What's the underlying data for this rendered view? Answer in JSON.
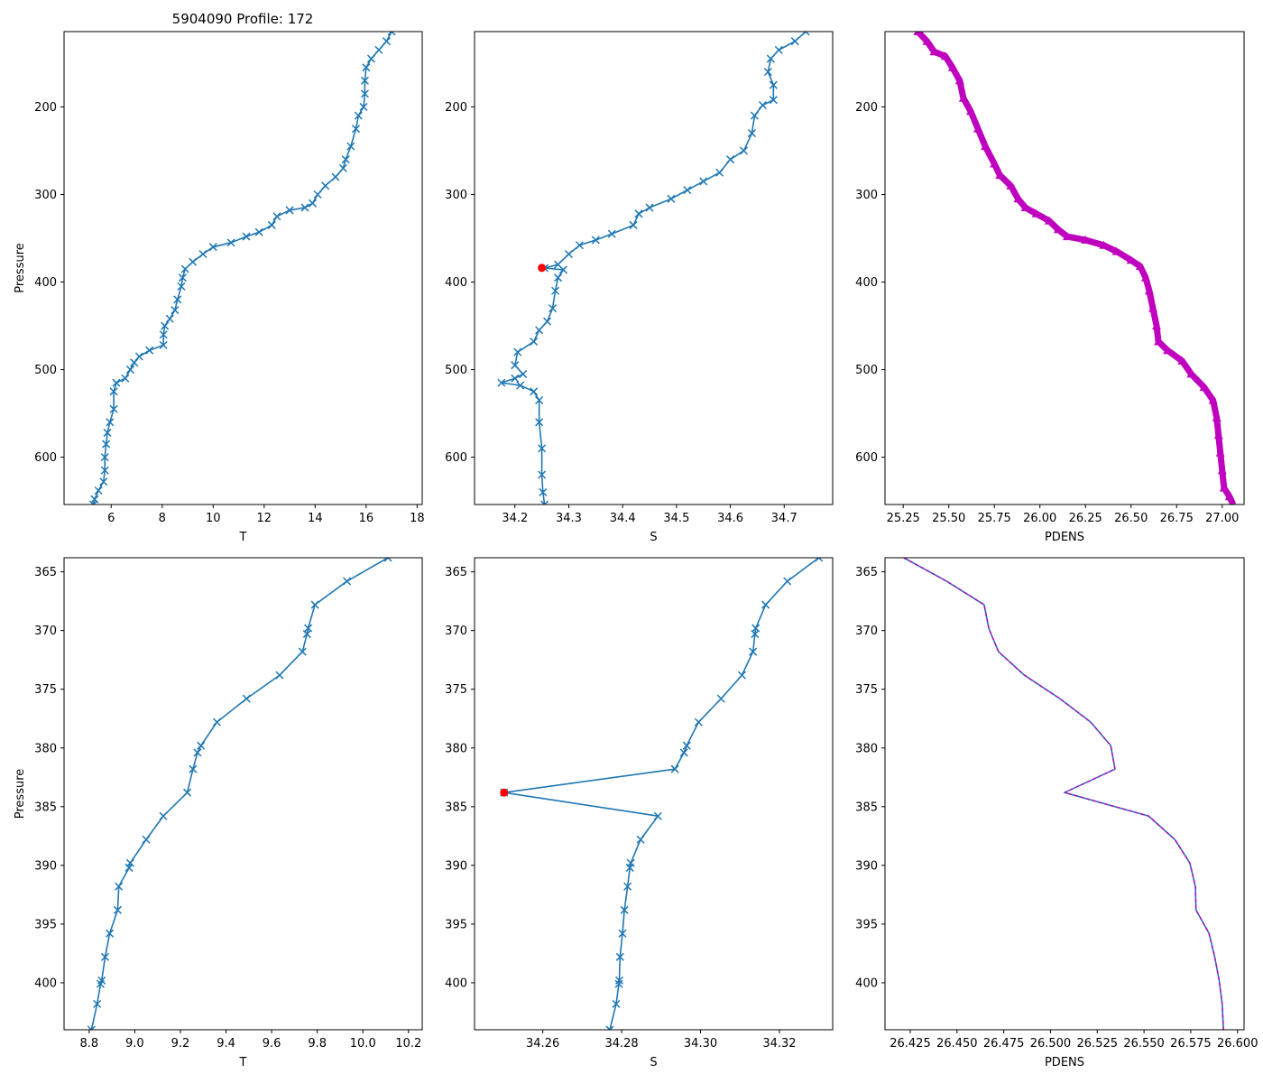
{
  "title": "5904090 Profile: 172",
  "colors": {
    "line": "#1f77b4",
    "density": "#bf00bf",
    "qc_flag": "#ff0000",
    "axis": "#000000"
  },
  "chart_data": [
    {
      "id": "top-temperature",
      "type": "line",
      "xlabel": "T",
      "ylabel": "Pressure",
      "xlim": [
        4.15,
        18.2
      ],
      "ylim": [
        654,
        114
      ],
      "y_inverted": true,
      "xticks": [
        6,
        8,
        10,
        12,
        14,
        16,
        18
      ],
      "yticks": [
        200,
        300,
        400,
        500,
        600
      ],
      "marker": "x",
      "color": "#1f77b4",
      "series": [
        {
          "name": "T",
          "points": [
            [
              17.0,
              114
            ],
            [
              16.8,
              125
            ],
            [
              16.5,
              135
            ],
            [
              16.2,
              145
            ],
            [
              16.0,
              155
            ],
            [
              15.95,
              170
            ],
            [
              15.95,
              185
            ],
            [
              15.9,
              200
            ],
            [
              15.7,
              210
            ],
            [
              15.6,
              225
            ],
            [
              15.4,
              245
            ],
            [
              15.2,
              260
            ],
            [
              15.1,
              270
            ],
            [
              14.8,
              280
            ],
            [
              14.4,
              290
            ],
            [
              14.1,
              300
            ],
            [
              13.9,
              310
            ],
            [
              13.6,
              315
            ],
            [
              13.0,
              318
            ],
            [
              12.5,
              325
            ],
            [
              12.3,
              335
            ],
            [
              11.8,
              343
            ],
            [
              11.3,
              348
            ],
            [
              10.7,
              355
            ],
            [
              10.0,
              360
            ],
            [
              9.6,
              368
            ],
            [
              9.2,
              377
            ],
            [
              8.9,
              385
            ],
            [
              8.8,
              395
            ],
            [
              8.75,
              405
            ],
            [
              8.6,
              420
            ],
            [
              8.5,
              432
            ],
            [
              8.3,
              442
            ],
            [
              8.1,
              450
            ],
            [
              8.05,
              460
            ],
            [
              8.05,
              472
            ],
            [
              7.5,
              478
            ],
            [
              7.1,
              485
            ],
            [
              6.9,
              492
            ],
            [
              6.75,
              500
            ],
            [
              6.55,
              510
            ],
            [
              6.2,
              515
            ],
            [
              6.1,
              525
            ],
            [
              6.1,
              545
            ],
            [
              5.95,
              560
            ],
            [
              5.85,
              572
            ],
            [
              5.8,
              585
            ],
            [
              5.75,
              600
            ],
            [
              5.75,
              615
            ],
            [
              5.7,
              628
            ],
            [
              5.5,
              638
            ],
            [
              5.35,
              648
            ],
            [
              5.3,
              654
            ]
          ]
        }
      ]
    },
    {
      "id": "top-salinity",
      "type": "line",
      "xlabel": "S",
      "ylabel": "",
      "xlim": [
        34.125,
        34.79
      ],
      "ylim": [
        654,
        114
      ],
      "y_inverted": true,
      "xticks": [
        34.2,
        34.3,
        34.4,
        34.5,
        34.6,
        34.7
      ],
      "yticks": [
        200,
        300,
        400,
        500,
        600
      ],
      "marker": "x",
      "color": "#1f77b4",
      "series": [
        {
          "name": "S",
          "points": [
            [
              34.74,
              114
            ],
            [
              34.72,
              125
            ],
            [
              34.69,
              135
            ],
            [
              34.675,
              145
            ],
            [
              34.67,
              160
            ],
            [
              34.68,
              175
            ],
            [
              34.68,
              192
            ],
            [
              34.66,
              198
            ],
            [
              34.645,
              210
            ],
            [
              34.64,
              230
            ],
            [
              34.625,
              250
            ],
            [
              34.6,
              260
            ],
            [
              34.58,
              275
            ],
            [
              34.55,
              285
            ],
            [
              34.52,
              295
            ],
            [
              34.49,
              305
            ],
            [
              34.45,
              315
            ],
            [
              34.43,
              322
            ],
            [
              34.42,
              335
            ],
            [
              34.38,
              345
            ],
            [
              34.35,
              352
            ],
            [
              34.32,
              358
            ],
            [
              34.3,
              368
            ],
            [
              34.28,
              380
            ],
            [
              34.255,
              384
            ],
            [
              34.29,
              386
            ],
            [
              34.28,
              395
            ],
            [
              34.275,
              410
            ],
            [
              34.27,
              430
            ],
            [
              34.26,
              445
            ],
            [
              34.245,
              455
            ],
            [
              34.235,
              468
            ],
            [
              34.205,
              480
            ],
            [
              34.2,
              495
            ],
            [
              34.215,
              505
            ],
            [
              34.2,
              510
            ],
            [
              34.175,
              515
            ],
            [
              34.21,
              518
            ],
            [
              34.235,
              525
            ],
            [
              34.245,
              535
            ],
            [
              34.245,
              560
            ],
            [
              34.25,
              590
            ],
            [
              34.25,
              620
            ],
            [
              34.252,
              640
            ],
            [
              34.255,
              654
            ]
          ]
        }
      ],
      "flags": [
        {
          "x": 34.25,
          "y": 383.8
        }
      ]
    },
    {
      "id": "top-density",
      "type": "line",
      "xlabel": "PDENS",
      "ylabel": "",
      "xlim": [
        25.15,
        27.12
      ],
      "ylim": [
        654,
        114
      ],
      "y_inverted": true,
      "xticks": [
        25.25,
        25.5,
        25.75,
        26.0,
        26.25,
        26.5,
        26.75,
        27.0
      ],
      "xtick_labels": [
        "25.25",
        "25.50",
        "25.75",
        "26.00",
        "26.25",
        "26.50",
        "26.75",
        "27.00"
      ],
      "yticks": [
        200,
        300,
        400,
        500,
        600
      ],
      "marker": "triangle",
      "color": "#bf00bf",
      "series": [
        {
          "name": "PDENS",
          "points": [
            [
              25.33,
              114
            ],
            [
              25.38,
              125
            ],
            [
              25.42,
              137
            ],
            [
              25.48,
              142
            ],
            [
              25.52,
              155
            ],
            [
              25.56,
              170
            ],
            [
              25.58,
              190
            ],
            [
              25.62,
              205
            ],
            [
              25.66,
              225
            ],
            [
              25.7,
              245
            ],
            [
              25.75,
              265
            ],
            [
              25.78,
              278
            ],
            [
              25.84,
              290
            ],
            [
              25.88,
              305
            ],
            [
              25.92,
              315
            ],
            [
              25.98,
              322
            ],
            [
              26.05,
              330
            ],
            [
              26.1,
              340
            ],
            [
              26.15,
              348
            ],
            [
              26.25,
              352
            ],
            [
              26.35,
              358
            ],
            [
              26.42,
              365
            ],
            [
              26.5,
              375
            ],
            [
              26.55,
              382
            ],
            [
              26.58,
              395
            ],
            [
              26.6,
              410
            ],
            [
              26.62,
              430
            ],
            [
              26.64,
              450
            ],
            [
              26.65,
              468
            ],
            [
              26.7,
              478
            ],
            [
              26.78,
              490
            ],
            [
              26.83,
              505
            ],
            [
              26.9,
              520
            ],
            [
              26.95,
              535
            ],
            [
              26.97,
              555
            ],
            [
              26.98,
              575
            ],
            [
              26.99,
              595
            ],
            [
              27.0,
              615
            ],
            [
              27.01,
              635
            ],
            [
              27.04,
              645
            ],
            [
              27.06,
              654
            ]
          ]
        }
      ]
    },
    {
      "id": "bottom-temperature",
      "type": "line",
      "xlabel": "T",
      "ylabel": "Pressure",
      "xlim": [
        8.69,
        10.26
      ],
      "ylim": [
        404,
        363.8
      ],
      "y_inverted": true,
      "xticks": [
        8.8,
        9.0,
        9.2,
        9.4,
        9.6,
        9.8,
        10.0,
        10.2
      ],
      "xtick_labels": [
        "8.8",
        "9.0",
        "9.2",
        "9.4",
        "9.6",
        "9.8",
        "10.0",
        "10.2"
      ],
      "yticks": [
        365,
        370,
        375,
        380,
        385,
        390,
        395,
        400
      ],
      "marker": "x",
      "color": "#1f77b4",
      "series": [
        {
          "name": "T",
          "points": [
            [
              10.11,
              363.8
            ],
            [
              9.93,
              365.8
            ],
            [
              9.79,
              367.8
            ],
            [
              9.76,
              369.8
            ],
            [
              9.755,
              370.3
            ],
            [
              9.735,
              371.8
            ],
            [
              9.635,
              373.8
            ],
            [
              9.49,
              375.8
            ],
            [
              9.36,
              377.8
            ],
            [
              9.29,
              379.8
            ],
            [
              9.275,
              380.4
            ],
            [
              9.255,
              381.8
            ],
            [
              9.23,
              383.8
            ],
            [
              9.125,
              385.8
            ],
            [
              9.05,
              387.8
            ],
            [
              8.98,
              389.8
            ],
            [
              8.975,
              390.2
            ],
            [
              8.93,
              391.8
            ],
            [
              8.925,
              393.8
            ],
            [
              8.89,
              395.8
            ],
            [
              8.87,
              397.8
            ],
            [
              8.855,
              399.8
            ],
            [
              8.85,
              400.1
            ],
            [
              8.835,
              401.8
            ],
            [
              8.81,
              404
            ]
          ]
        }
      ]
    },
    {
      "id": "bottom-salinity",
      "type": "line",
      "xlabel": "S",
      "ylabel": "",
      "xlim": [
        34.2427,
        34.3335
      ],
      "ylim": [
        404,
        363.8
      ],
      "y_inverted": true,
      "xticks": [
        34.26,
        34.28,
        34.3,
        34.32
      ],
      "xtick_labels": [
        "34.26",
        "34.28",
        "34.30",
        "34.32"
      ],
      "yticks": [
        365,
        370,
        375,
        380,
        385,
        390,
        395,
        400
      ],
      "marker": "x",
      "color": "#1f77b4",
      "series": [
        {
          "name": "S",
          "points": [
            [
              34.33,
              363.8
            ],
            [
              34.322,
              365.8
            ],
            [
              34.3165,
              367.8
            ],
            [
              34.314,
              369.8
            ],
            [
              34.3138,
              370.3
            ],
            [
              34.3133,
              371.8
            ],
            [
              34.3105,
              373.8
            ],
            [
              34.3052,
              375.8
            ],
            [
              34.2995,
              377.8
            ],
            [
              34.2965,
              379.8
            ],
            [
              34.2958,
              380.4
            ],
            [
              34.2935,
              381.8
            ],
            [
              34.2502,
              383.8
            ],
            [
              34.2892,
              385.8
            ],
            [
              34.2848,
              387.8
            ],
            [
              34.2823,
              389.8
            ],
            [
              34.2821,
              390.2
            ],
            [
              34.2815,
              391.8
            ],
            [
              34.2807,
              393.8
            ],
            [
              34.2802,
              395.8
            ],
            [
              34.2796,
              397.8
            ],
            [
              34.2794,
              399.8
            ],
            [
              34.2793,
              400.1
            ],
            [
              34.2786,
              401.8
            ],
            [
              34.277,
              404
            ]
          ]
        }
      ],
      "flags": [
        {
          "x": 34.2502,
          "y": 383.8
        }
      ]
    },
    {
      "id": "bottom-density",
      "type": "line",
      "xlabel": "PDENS",
      "ylabel": "",
      "xlim": [
        26.4115,
        26.6035
      ],
      "ylim": [
        404,
        363.8
      ],
      "y_inverted": true,
      "xticks": [
        26.425,
        26.45,
        26.475,
        26.5,
        26.525,
        26.55,
        26.575,
        26.6
      ],
      "xtick_labels": [
        "26.425",
        "26.450",
        "26.475",
        "26.500",
        "26.525",
        "26.550",
        "26.575",
        "26.600"
      ],
      "yticks": [
        365,
        370,
        375,
        380,
        385,
        390,
        395,
        400
      ],
      "marker": "none",
      "color": "#1f77b4",
      "overlay_color": "#bf00bf",
      "series": [
        {
          "name": "PDENS",
          "points": [
            [
              26.4215,
              363.8
            ],
            [
              26.4445,
              365.8
            ],
            [
              26.4645,
              367.8
            ],
            [
              26.467,
              369.8
            ],
            [
              26.4685,
              370.4
            ],
            [
              26.4722,
              371.8
            ],
            [
              26.486,
              373.8
            ],
            [
              26.505,
              375.8
            ],
            [
              26.5215,
              377.8
            ],
            [
              26.5322,
              379.8
            ],
            [
              26.5345,
              381.8
            ],
            [
              26.5075,
              383.8
            ],
            [
              26.5525,
              385.8
            ],
            [
              26.5665,
              387.8
            ],
            [
              26.5745,
              389.8
            ],
            [
              26.5775,
              391.8
            ],
            [
              26.5778,
              393.8
            ],
            [
              26.5848,
              395.8
            ],
            [
              26.5878,
              397.8
            ],
            [
              26.5902,
              399.8
            ],
            [
              26.5918,
              401.8
            ],
            [
              26.5925,
              404
            ]
          ]
        }
      ]
    }
  ]
}
